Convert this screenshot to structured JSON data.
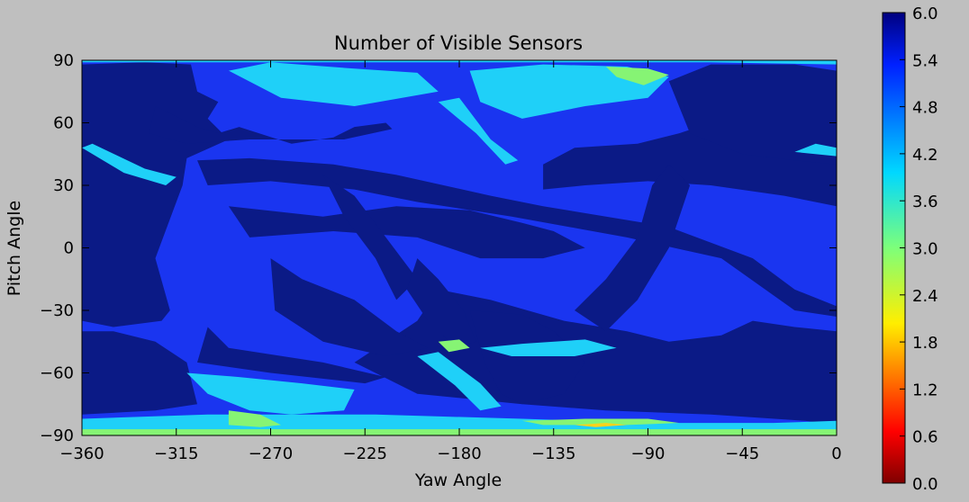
{
  "chart_data": {
    "type": "heatmap",
    "title": "Number of Visible Sensors",
    "xlabel": "Yaw Angle",
    "ylabel": "Pitch Angle",
    "xlim": [
      -360,
      0
    ],
    "ylim": [
      -90,
      90
    ],
    "x_ticks": [
      -360,
      -315,
      -270,
      -225,
      -180,
      -135,
      -90,
      -45,
      0
    ],
    "x_tick_labels": [
      "−360",
      "−315",
      "−270",
      "−225",
      "−180",
      "−135",
      "−90",
      "−45",
      "0"
    ],
    "y_ticks": [
      -90,
      -60,
      -30,
      0,
      30,
      60,
      90
    ],
    "y_tick_labels": [
      "−90",
      "−60",
      "−30",
      "0",
      "30",
      "60",
      "90"
    ],
    "colorbar": {
      "min": 0.0,
      "max": 6.0,
      "ticks": [
        0.0,
        0.6,
        1.2,
        1.8,
        2.4,
        3.0,
        3.6,
        4.2,
        4.8,
        5.4,
        6.0
      ],
      "tick_labels": [
        "0.0",
        "0.6",
        "1.2",
        "1.8",
        "2.4",
        "3.0",
        "3.6",
        "4.2",
        "4.8",
        "5.4",
        "6.0"
      ],
      "colormap": "jet"
    },
    "level_colors": {
      "6": "#0b1a86",
      "5": "#1a35f0",
      "4": "#1fd0f8",
      "3": "#86f474",
      "2": "#fbd21a"
    },
    "background_level": 5,
    "regions": [
      {
        "level": 6,
        "polygon": [
          [
            -360,
            88
          ],
          [
            -330,
            89
          ],
          [
            -308,
            88
          ],
          [
            -305,
            75
          ],
          [
            -295,
            70
          ],
          [
            -300,
            62
          ],
          [
            -290,
            52
          ],
          [
            -310,
            43
          ],
          [
            -312,
            30
          ],
          [
            -325,
            -5
          ],
          [
            -318,
            -30
          ],
          [
            -322,
            -35
          ],
          [
            -345,
            -38
          ],
          [
            -360,
            -35
          ]
        ]
      },
      {
        "level": 6,
        "polygon": [
          [
            -360,
            -40
          ],
          [
            -345,
            -40
          ],
          [
            -325,
            -45
          ],
          [
            -310,
            -55
          ],
          [
            -305,
            -75
          ],
          [
            -325,
            -78
          ],
          [
            -360,
            -80
          ]
        ]
      },
      {
        "level": 6,
        "polygon": [
          [
            -300,
            -38
          ],
          [
            -290,
            -48
          ],
          [
            -245,
            -55
          ],
          [
            -215,
            -62
          ],
          [
            -225,
            -65
          ],
          [
            -270,
            -60
          ],
          [
            -305,
            -55
          ]
        ]
      },
      {
        "level": 6,
        "polygon": [
          [
            -325,
            68
          ],
          [
            -305,
            58
          ],
          [
            -295,
            55
          ],
          [
            -285,
            58
          ],
          [
            -260,
            50
          ],
          [
            -240,
            53
          ],
          [
            -230,
            58
          ],
          [
            -215,
            60
          ],
          [
            -212,
            57
          ],
          [
            -235,
            52
          ],
          [
            -280,
            52
          ],
          [
            -310,
            50
          ],
          [
            -328,
            55
          ]
        ]
      },
      {
        "level": 6,
        "polygon": [
          [
            -305,
            42
          ],
          [
            -280,
            43
          ],
          [
            -240,
            40
          ],
          [
            -210,
            35
          ],
          [
            -165,
            25
          ],
          [
            -140,
            20
          ],
          [
            -110,
            15
          ],
          [
            -80,
            10
          ],
          [
            -40,
            -5
          ],
          [
            -20,
            -20
          ],
          [
            0,
            -28
          ],
          [
            0,
            -33
          ],
          [
            -20,
            -30
          ],
          [
            -55,
            -5
          ],
          [
            -100,
            5
          ],
          [
            -155,
            15
          ],
          [
            -200,
            22
          ],
          [
            -230,
            28
          ],
          [
            -270,
            32
          ],
          [
            -300,
            30
          ]
        ]
      },
      {
        "level": 6,
        "polygon": [
          [
            -290,
            20
          ],
          [
            -245,
            15
          ],
          [
            -210,
            20
          ],
          [
            -175,
            18
          ],
          [
            -150,
            12
          ],
          [
            -135,
            8
          ],
          [
            -120,
            0
          ],
          [
            -140,
            -5
          ],
          [
            -170,
            -5
          ],
          [
            -200,
            5
          ],
          [
            -240,
            8
          ],
          [
            -280,
            5
          ]
        ]
      },
      {
        "level": 6,
        "polygon": [
          [
            -190,
            -20
          ],
          [
            -165,
            -25
          ],
          [
            -130,
            -35
          ],
          [
            -100,
            -40
          ],
          [
            -80,
            -45
          ],
          [
            -55,
            -42
          ],
          [
            -40,
            -35
          ],
          [
            -20,
            -38
          ],
          [
            0,
            -40
          ],
          [
            0,
            -85
          ],
          [
            -15,
            -83
          ],
          [
            -60,
            -80
          ],
          [
            -110,
            -78
          ],
          [
            -150,
            -75
          ],
          [
            -200,
            -70
          ],
          [
            -230,
            -55
          ],
          [
            -215,
            -45
          ],
          [
            -200,
            -35
          ]
        ]
      },
      {
        "level": 6,
        "polygon": [
          [
            -140,
            40
          ],
          [
            -125,
            48
          ],
          [
            -95,
            50
          ],
          [
            -75,
            55
          ],
          [
            -60,
            60
          ],
          [
            -45,
            65
          ],
          [
            -25,
            72
          ],
          [
            0,
            72
          ],
          [
            0,
            20
          ],
          [
            -25,
            25
          ],
          [
            -60,
            30
          ],
          [
            -90,
            32
          ],
          [
            -120,
            30
          ],
          [
            -140,
            28
          ]
        ]
      },
      {
        "level": 6,
        "polygon": [
          [
            -80,
            80
          ],
          [
            -60,
            88
          ],
          [
            -20,
            88
          ],
          [
            0,
            85
          ],
          [
            0,
            40
          ],
          [
            -20,
            42
          ],
          [
            -45,
            45
          ],
          [
            -70,
            55
          ]
        ]
      },
      {
        "level": 6,
        "polygon": [
          [
            -270,
            -5
          ],
          [
            -255,
            -15
          ],
          [
            -230,
            -25
          ],
          [
            -210,
            -40
          ],
          [
            -195,
            -48
          ],
          [
            -215,
            -52
          ],
          [
            -245,
            -45
          ],
          [
            -268,
            -30
          ]
        ]
      },
      {
        "level": 6,
        "polygon": [
          [
            -245,
            35
          ],
          [
            -235,
            15
          ],
          [
            -220,
            -5
          ],
          [
            -210,
            -25
          ],
          [
            -200,
            -15
          ],
          [
            -215,
            5
          ],
          [
            -230,
            25
          ]
        ]
      },
      {
        "level": 6,
        "polygon": [
          [
            -175,
            -30
          ],
          [
            -168,
            -55
          ],
          [
            -160,
            -70
          ],
          [
            -150,
            -75
          ],
          [
            -130,
            -70
          ],
          [
            -120,
            -55
          ],
          [
            -135,
            -40
          ],
          [
            -150,
            -32
          ]
        ]
      },
      {
        "level": 6,
        "polygon": [
          [
            -125,
            -30
          ],
          [
            -110,
            -15
          ],
          [
            -95,
            5
          ],
          [
            -88,
            30
          ],
          [
            -80,
            40
          ],
          [
            -70,
            30
          ],
          [
            -80,
            0
          ],
          [
            -95,
            -25
          ],
          [
            -110,
            -40
          ]
        ]
      },
      {
        "level": 6,
        "polygon": [
          [
            -200,
            -5
          ],
          [
            -190,
            -15
          ],
          [
            -178,
            -30
          ],
          [
            -172,
            -45
          ],
          [
            -182,
            -48
          ],
          [
            -195,
            -35
          ],
          [
            -205,
            -20
          ]
        ]
      },
      {
        "level": 4,
        "polygon": [
          [
            -360,
            -82
          ],
          [
            -360,
            -90
          ],
          [
            0,
            -90
          ],
          [
            0,
            -83
          ],
          [
            -30,
            -84
          ],
          [
            -90,
            -84
          ],
          [
            -150,
            -82
          ],
          [
            -220,
            -80
          ],
          [
            -300,
            -80
          ]
        ]
      },
      {
        "level": 4,
        "polygon": [
          [
            -360,
            89
          ],
          [
            -360,
            90
          ],
          [
            0,
            90
          ],
          [
            0,
            88
          ],
          [
            -60,
            89
          ]
        ]
      },
      {
        "level": 4,
        "polygon": [
          [
            -290,
            85
          ],
          [
            -270,
            89
          ],
          [
            -230,
            86
          ],
          [
            -200,
            84
          ],
          [
            -190,
            75
          ],
          [
            -230,
            68
          ],
          [
            -265,
            72
          ]
        ]
      },
      {
        "level": 4,
        "polygon": [
          [
            -175,
            85
          ],
          [
            -140,
            88
          ],
          [
            -100,
            87
          ],
          [
            -80,
            82
          ],
          [
            -90,
            72
          ],
          [
            -120,
            68
          ],
          [
            -150,
            62
          ],
          [
            -170,
            70
          ]
        ]
      },
      {
        "level": 4,
        "polygon": [
          [
            -310,
            -60
          ],
          [
            -300,
            -70
          ],
          [
            -280,
            -78
          ],
          [
            -260,
            -80
          ],
          [
            -235,
            -78
          ],
          [
            -230,
            -68
          ],
          [
            -255,
            -65
          ],
          [
            -285,
            -62
          ]
        ]
      },
      {
        "level": 4,
        "polygon": [
          [
            -170,
            -48
          ],
          [
            -150,
            -46
          ],
          [
            -120,
            -44
          ],
          [
            -105,
            -48
          ],
          [
            -125,
            -52
          ],
          [
            -155,
            -52
          ]
        ]
      },
      {
        "level": 4,
        "polygon": [
          [
            -190,
            70
          ],
          [
            -180,
            72
          ],
          [
            -165,
            52
          ],
          [
            -152,
            42
          ],
          [
            -158,
            40
          ],
          [
            -172,
            55
          ]
        ]
      },
      {
        "level": 4,
        "polygon": [
          [
            -200,
            -52
          ],
          [
            -190,
            -50
          ],
          [
            -170,
            -65
          ],
          [
            -160,
            -76
          ],
          [
            -170,
            -78
          ],
          [
            -182,
            -66
          ]
        ]
      },
      {
        "level": 4,
        "polygon": [
          [
            -360,
            48
          ],
          [
            -355,
            50
          ],
          [
            -330,
            38
          ],
          [
            -315,
            34
          ],
          [
            -320,
            30
          ],
          [
            -340,
            36
          ]
        ]
      },
      {
        "level": 4,
        "polygon": [
          [
            -10,
            50
          ],
          [
            0,
            48
          ],
          [
            0,
            44
          ],
          [
            -20,
            46
          ]
        ]
      },
      {
        "level": 3,
        "polygon": [
          [
            -290,
            -78
          ],
          [
            -275,
            -80
          ],
          [
            -265,
            -85
          ],
          [
            -275,
            -86
          ],
          [
            -290,
            -85
          ]
        ]
      },
      {
        "level": 3,
        "polygon": [
          [
            -150,
            -83
          ],
          [
            -120,
            -82
          ],
          [
            -90,
            -82
          ],
          [
            -75,
            -84
          ],
          [
            -100,
            -85
          ],
          [
            -140,
            -85
          ]
        ]
      },
      {
        "level": 3,
        "polygon": [
          [
            -110,
            87
          ],
          [
            -90,
            86
          ],
          [
            -80,
            83
          ],
          [
            -92,
            78
          ],
          [
            -105,
            82
          ]
        ]
      },
      {
        "level": 3,
        "polygon": [
          [
            -190,
            -45
          ],
          [
            -180,
            -44
          ],
          [
            -175,
            -48
          ],
          [
            -185,
            -50
          ]
        ]
      },
      {
        "level": 3,
        "polygon": [
          [
            -360,
            -87
          ],
          [
            -360,
            -90
          ],
          [
            0,
            -90
          ],
          [
            0,
            -87
          ]
        ]
      },
      {
        "level": 2,
        "polygon": [
          [
            -125,
            -85
          ],
          [
            -110,
            -84
          ],
          [
            -100,
            -85
          ],
          [
            -115,
            -86
          ]
        ]
      }
    ]
  }
}
